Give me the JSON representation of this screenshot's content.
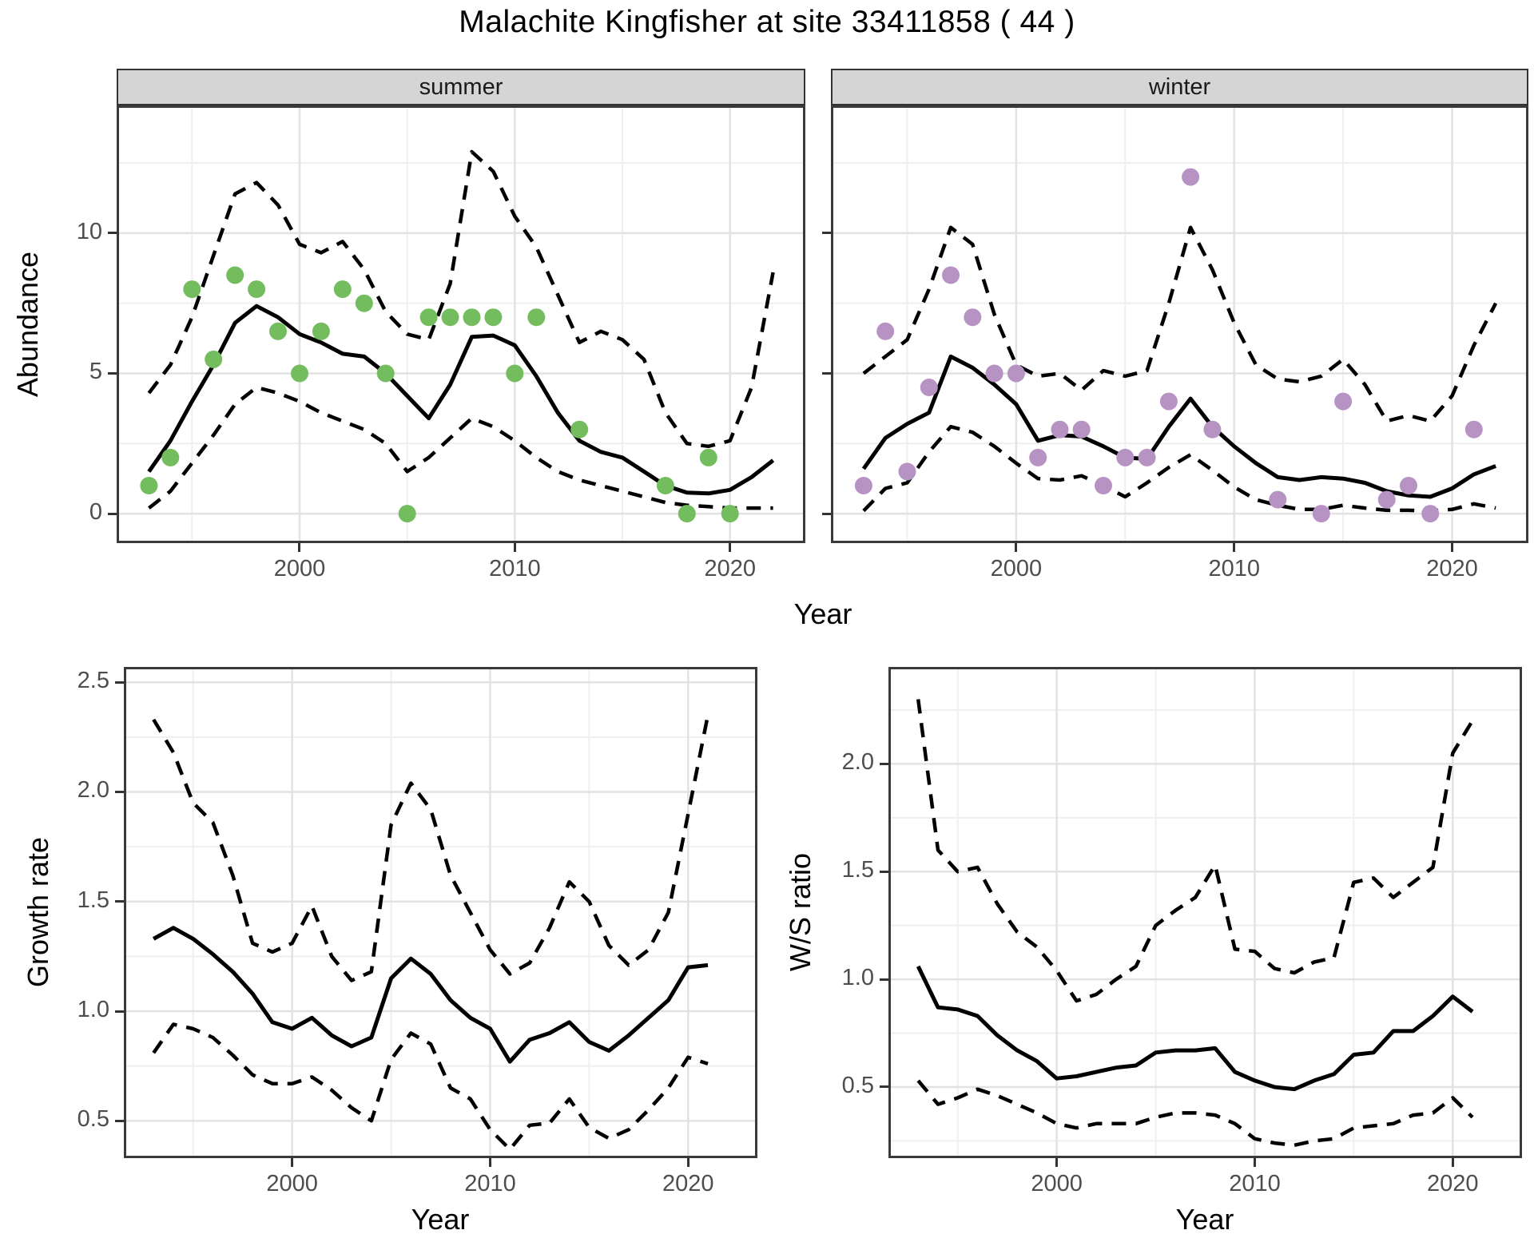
{
  "title": "Malachite Kingfisher at site 33411858 ( 44 )",
  "colors": {
    "summer_points": "#74BD5F",
    "winter_points": "#B793C4",
    "line": "#000000",
    "ci_line": "#000000",
    "grid_major": "#e2e2e2",
    "grid_minor": "#efefef",
    "axis_text": "#4d4d4d",
    "strip_bg": "#d5d5d5",
    "strip_border": "#333333",
    "panel_border": "#3a3a3a"
  },
  "chart_data": [
    {
      "type": "line",
      "facet": "summer",
      "ylabel": "Abundance",
      "xlabel": "Year",
      "xlim": [
        1991.5,
        2023.5
      ],
      "ylim": [
        -1.05,
        14.55
      ],
      "xticks": [
        {
          "v": 2000,
          "l": "2000"
        },
        {
          "v": 2010,
          "l": "2010"
        },
        {
          "v": 2020,
          "l": "2020"
        }
      ],
      "yticks": [
        {
          "v": 0,
          "l": "0"
        },
        {
          "v": 5,
          "l": "5"
        },
        {
          "v": 10,
          "l": "10"
        }
      ],
      "xminor": [
        1995,
        2005,
        2015
      ],
      "yminor": [
        2.5,
        7.5,
        12.5
      ],
      "x": [
        1993,
        1994,
        1995,
        1996,
        1997,
        1998,
        1999,
        2000,
        2001,
        2002,
        2003,
        2004,
        2005,
        2006,
        2007,
        2008,
        2009,
        2010,
        2011,
        2012,
        2013,
        2014,
        2015,
        2016,
        2017,
        2018,
        2019,
        2020,
        2021,
        2022
      ],
      "series": [
        {
          "name": "mean",
          "style": "solid",
          "values": [
            1.5,
            2.6,
            4.0,
            5.3,
            6.8,
            7.4,
            7.0,
            6.4,
            6.1,
            5.7,
            5.6,
            5.0,
            4.2,
            3.4,
            4.6,
            6.3,
            6.35,
            6.0,
            4.9,
            3.6,
            2.6,
            2.2,
            2.0,
            1.5,
            1.0,
            0.75,
            0.72,
            0.85,
            1.3,
            1.9
          ]
        },
        {
          "name": "upper_ci",
          "style": "dashed",
          "values": [
            4.3,
            5.3,
            7.0,
            9.2,
            11.4,
            11.8,
            11.0,
            9.6,
            9.3,
            9.7,
            8.7,
            7.2,
            6.4,
            6.2,
            8.2,
            12.9,
            12.2,
            10.6,
            9.5,
            7.8,
            6.1,
            6.5,
            6.2,
            5.5,
            3.6,
            2.5,
            2.4,
            2.6,
            4.5,
            8.6
          ]
        },
        {
          "name": "lower_ci",
          "style": "dashed",
          "values": [
            0.2,
            0.8,
            1.8,
            2.8,
            3.9,
            4.5,
            4.3,
            4.0,
            3.6,
            3.3,
            3.0,
            2.5,
            1.5,
            2.0,
            2.7,
            3.4,
            3.1,
            2.6,
            2.0,
            1.5,
            1.2,
            1.0,
            0.8,
            0.6,
            0.4,
            0.3,
            0.25,
            0.2,
            0.2,
            0.2
          ]
        }
      ],
      "points": {
        "color": "#74BD5F",
        "xy": [
          [
            1993,
            1
          ],
          [
            1994,
            2
          ],
          [
            1995,
            8
          ],
          [
            1996,
            5.5
          ],
          [
            1997,
            8.5
          ],
          [
            1998,
            8
          ],
          [
            1999,
            6.5
          ],
          [
            2000,
            5
          ],
          [
            2001,
            6.5
          ],
          [
            2002,
            8
          ],
          [
            2003,
            7.5
          ],
          [
            2004,
            5
          ],
          [
            2005,
            0
          ],
          [
            2006,
            7
          ],
          [
            2007,
            7
          ],
          [
            2008,
            7
          ],
          [
            2009,
            7
          ],
          [
            2010,
            5
          ],
          [
            2011,
            7
          ],
          [
            2013,
            3
          ],
          [
            2017,
            1
          ],
          [
            2018,
            0
          ],
          [
            2019,
            2
          ],
          [
            2020,
            0
          ]
        ]
      }
    },
    {
      "type": "line",
      "facet": "winter",
      "ylabel": "Abundance",
      "xlabel": "Year",
      "xlim": [
        1991.5,
        2023.5
      ],
      "ylim": [
        -1.05,
        14.55
      ],
      "xticks": [
        {
          "v": 2000,
          "l": "2000"
        },
        {
          "v": 2010,
          "l": "2010"
        },
        {
          "v": 2020,
          "l": "2020"
        }
      ],
      "yticks": [
        {
          "v": 0,
          "l": "0"
        },
        {
          "v": 5,
          "l": "5"
        },
        {
          "v": 10,
          "l": "10"
        }
      ],
      "xminor": [
        1995,
        2005,
        2015
      ],
      "yminor": [
        2.5,
        7.5,
        12.5
      ],
      "x": [
        1993,
        1994,
        1995,
        1996,
        1997,
        1998,
        1999,
        2000,
        2001,
        2002,
        2003,
        2004,
        2005,
        2006,
        2007,
        2008,
        2009,
        2010,
        2011,
        2012,
        2013,
        2014,
        2015,
        2016,
        2017,
        2018,
        2019,
        2020,
        2021,
        2022
      ],
      "series": [
        {
          "name": "mean",
          "style": "solid",
          "values": [
            1.6,
            2.7,
            3.2,
            3.6,
            5.6,
            5.2,
            4.6,
            3.9,
            2.6,
            2.8,
            2.75,
            2.4,
            2.0,
            1.95,
            3.1,
            4.1,
            3.1,
            2.4,
            1.8,
            1.3,
            1.2,
            1.3,
            1.25,
            1.1,
            0.8,
            0.65,
            0.6,
            0.9,
            1.4,
            1.7
          ]
        },
        {
          "name": "upper_ci",
          "style": "dashed",
          "values": [
            5.0,
            5.6,
            6.2,
            8.0,
            10.2,
            9.6,
            7.1,
            5.3,
            4.9,
            5.0,
            4.4,
            5.1,
            4.9,
            5.1,
            7.5,
            10.2,
            8.7,
            6.8,
            5.3,
            4.8,
            4.7,
            4.9,
            5.5,
            4.6,
            3.3,
            3.5,
            3.3,
            4.2,
            6.0,
            7.5
          ]
        },
        {
          "name": "lower_ci",
          "style": "dashed",
          "values": [
            0.1,
            0.9,
            1.1,
            2.2,
            3.1,
            2.9,
            2.4,
            1.8,
            1.25,
            1.2,
            1.35,
            1.0,
            0.6,
            1.1,
            1.65,
            2.1,
            1.55,
            0.95,
            0.5,
            0.3,
            0.15,
            0.15,
            0.3,
            0.2,
            0.12,
            0.12,
            0.1,
            0.15,
            0.35,
            0.2
          ]
        }
      ],
      "points": {
        "color": "#B793C4",
        "xy": [
          [
            1993,
            1
          ],
          [
            1994,
            6.5
          ],
          [
            1995,
            1.5
          ],
          [
            1996,
            4.5
          ],
          [
            1997,
            8.5
          ],
          [
            1998,
            7
          ],
          [
            1999,
            5
          ],
          [
            2000,
            5
          ],
          [
            2001,
            2
          ],
          [
            2002,
            3
          ],
          [
            2003,
            3
          ],
          [
            2004,
            1
          ],
          [
            2005,
            2
          ],
          [
            2006,
            2
          ],
          [
            2007,
            4
          ],
          [
            2008,
            12
          ],
          [
            2009,
            3
          ],
          [
            2012,
            0.5
          ],
          [
            2014,
            0
          ],
          [
            2015,
            4
          ],
          [
            2017,
            0.5
          ],
          [
            2018,
            1
          ],
          [
            2019,
            0
          ],
          [
            2021,
            3
          ]
        ]
      }
    },
    {
      "type": "line",
      "facet": null,
      "ylabel": "Growth rate",
      "xlabel": "Year",
      "xlim": [
        1991.5,
        2023.5
      ],
      "ylim": [
        0.33,
        2.57
      ],
      "xticks": [
        {
          "v": 2000,
          "l": "2000"
        },
        {
          "v": 2010,
          "l": "2010"
        },
        {
          "v": 2020,
          "l": "2020"
        }
      ],
      "yticks": [
        {
          "v": 0.5,
          "l": "0.5"
        },
        {
          "v": 1.0,
          "l": "1.0"
        },
        {
          "v": 1.5,
          "l": "1.5"
        },
        {
          "v": 2.0,
          "l": "2.0"
        },
        {
          "v": 2.5,
          "l": "2.5"
        }
      ],
      "xminor": [
        1995,
        2005,
        2015
      ],
      "yminor": [
        0.75,
        1.25,
        1.75,
        2.25
      ],
      "x": [
        1993,
        1994,
        1995,
        1996,
        1997,
        1998,
        1999,
        2000,
        2001,
        2002,
        2003,
        2004,
        2005,
        2006,
        2007,
        2008,
        2009,
        2010,
        2011,
        2012,
        2013,
        2014,
        2015,
        2016,
        2017,
        2018,
        2019,
        2020,
        2021
      ],
      "series": [
        {
          "name": "mean",
          "style": "solid",
          "values": [
            1.33,
            1.38,
            1.33,
            1.26,
            1.18,
            1.08,
            0.95,
            0.92,
            0.97,
            0.89,
            0.84,
            0.88,
            1.15,
            1.24,
            1.17,
            1.05,
            0.97,
            0.92,
            0.77,
            0.87,
            0.9,
            0.95,
            0.86,
            0.82,
            0.89,
            0.97,
            1.05,
            1.2,
            1.21
          ]
        },
        {
          "name": "upper_ci",
          "style": "dashed",
          "values": [
            2.33,
            2.18,
            1.95,
            1.86,
            1.62,
            1.31,
            1.27,
            1.31,
            1.48,
            1.25,
            1.14,
            1.18,
            1.85,
            2.04,
            1.92,
            1.62,
            1.45,
            1.28,
            1.17,
            1.22,
            1.38,
            1.59,
            1.5,
            1.3,
            1.21,
            1.28,
            1.45,
            1.9,
            2.35
          ]
        },
        {
          "name": "lower_ci",
          "style": "dashed",
          "values": [
            0.81,
            0.94,
            0.92,
            0.88,
            0.8,
            0.71,
            0.67,
            0.67,
            0.7,
            0.64,
            0.56,
            0.5,
            0.78,
            0.9,
            0.85,
            0.65,
            0.6,
            0.46,
            0.37,
            0.48,
            0.49,
            0.6,
            0.47,
            0.42,
            0.46,
            0.55,
            0.65,
            0.79,
            0.76
          ]
        }
      ],
      "points": null
    },
    {
      "type": "line",
      "facet": null,
      "ylabel": "W/S ratio",
      "xlabel": "Year",
      "xlim": [
        1991.5,
        2023.5
      ],
      "ylim": [
        0.17,
        2.45
      ],
      "xticks": [
        {
          "v": 2000,
          "l": "2000"
        },
        {
          "v": 2010,
          "l": "2010"
        },
        {
          "v": 2020,
          "l": "2020"
        }
      ],
      "yticks": [
        {
          "v": 0.5,
          "l": "0.5"
        },
        {
          "v": 1.0,
          "l": "1.0"
        },
        {
          "v": 1.5,
          "l": "1.5"
        },
        {
          "v": 2.0,
          "l": "2.0"
        }
      ],
      "xminor": [
        1995,
        2005,
        2015
      ],
      "yminor": [
        0.25,
        0.75,
        1.25,
        1.75,
        2.25
      ],
      "x": [
        1993,
        1994,
        1995,
        1996,
        1997,
        1998,
        1999,
        2000,
        2001,
        2002,
        2003,
        2004,
        2005,
        2006,
        2007,
        2008,
        2009,
        2010,
        2011,
        2012,
        2013,
        2014,
        2015,
        2016,
        2017,
        2018,
        2019,
        2020,
        2021
      ],
      "series": [
        {
          "name": "mean",
          "style": "solid",
          "values": [
            1.06,
            0.87,
            0.86,
            0.83,
            0.74,
            0.67,
            0.62,
            0.54,
            0.55,
            0.57,
            0.59,
            0.6,
            0.66,
            0.67,
            0.67,
            0.68,
            0.57,
            0.53,
            0.5,
            0.49,
            0.53,
            0.56,
            0.65,
            0.66,
            0.76,
            0.76,
            0.83,
            0.92,
            0.85
          ]
        },
        {
          "name": "upper_ci",
          "style": "dashed",
          "values": [
            2.3,
            1.6,
            1.5,
            1.52,
            1.35,
            1.22,
            1.15,
            1.04,
            0.9,
            0.93,
            1.0,
            1.06,
            1.25,
            1.32,
            1.38,
            1.53,
            1.14,
            1.13,
            1.05,
            1.03,
            1.08,
            1.1,
            1.45,
            1.47,
            1.38,
            1.45,
            1.52,
            2.05,
            2.2
          ]
        },
        {
          "name": "lower_ci",
          "style": "dashed",
          "values": [
            0.53,
            0.42,
            0.45,
            0.49,
            0.46,
            0.42,
            0.38,
            0.33,
            0.31,
            0.33,
            0.33,
            0.33,
            0.36,
            0.38,
            0.38,
            0.37,
            0.33,
            0.26,
            0.24,
            0.23,
            0.25,
            0.26,
            0.31,
            0.32,
            0.33,
            0.37,
            0.38,
            0.45,
            0.36
          ]
        }
      ],
      "points": null
    }
  ]
}
